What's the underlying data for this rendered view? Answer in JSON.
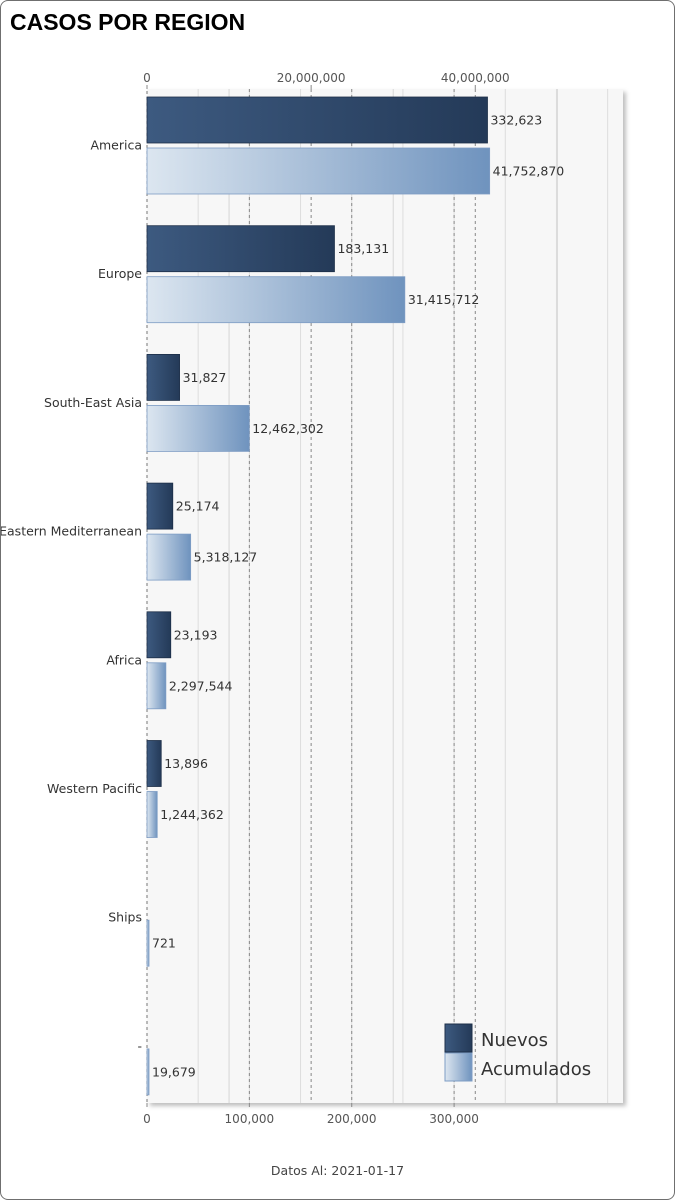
{
  "title": "CASOS POR REGION",
  "footer": "Datos Al: 2021-01-17",
  "colors": {
    "nuevos_dark": "#243a58",
    "nuevos_light": "#3d5a80",
    "acum_light": "#dce6f0",
    "acum_dark": "#6f93be",
    "plot_bg": "#f7f7f7"
  },
  "chart_data": {
    "type": "bar",
    "orientation": "horizontal",
    "categories": [
      "America",
      "Europe",
      "South-East Asia",
      "Eastern Mediterranean",
      "Africa",
      "Western Pacific",
      "Ships",
      "-"
    ],
    "series": [
      {
        "name": "Nuevos",
        "axis": "bottom",
        "values": [
          332623,
          183131,
          31827,
          25174,
          23193,
          13896,
          null,
          null
        ],
        "labels": [
          "332,623",
          "183,131",
          "31,827",
          "25,174",
          "23,193",
          "13,896",
          "",
          ""
        ]
      },
      {
        "name": "Acumulados",
        "axis": "top",
        "values": [
          41752870,
          31415712,
          12462302,
          5318127,
          2297544,
          1244362,
          721,
          19679
        ],
        "labels": [
          "41,752,870",
          "31,415,712",
          "12,462,302",
          "5,318,127",
          "2,297,544",
          "1,244,362",
          "721",
          "19,679"
        ]
      }
    ],
    "top_axis": {
      "range": [
        0,
        58000000
      ],
      "ticks": [
        0,
        20000000,
        40000000
      ],
      "tick_labels": [
        "0",
        "20,000,000",
        "40,000,000"
      ]
    },
    "bottom_axis": {
      "range": [
        0,
        465000
      ],
      "ticks": [
        0,
        100000,
        200000,
        300000
      ],
      "tick_labels": [
        "0",
        "100,000",
        "200,000",
        "300,000"
      ]
    },
    "legend": {
      "position": "bottom-right",
      "entries": [
        "Nuevos",
        "Acumulados"
      ]
    },
    "grid": true
  }
}
